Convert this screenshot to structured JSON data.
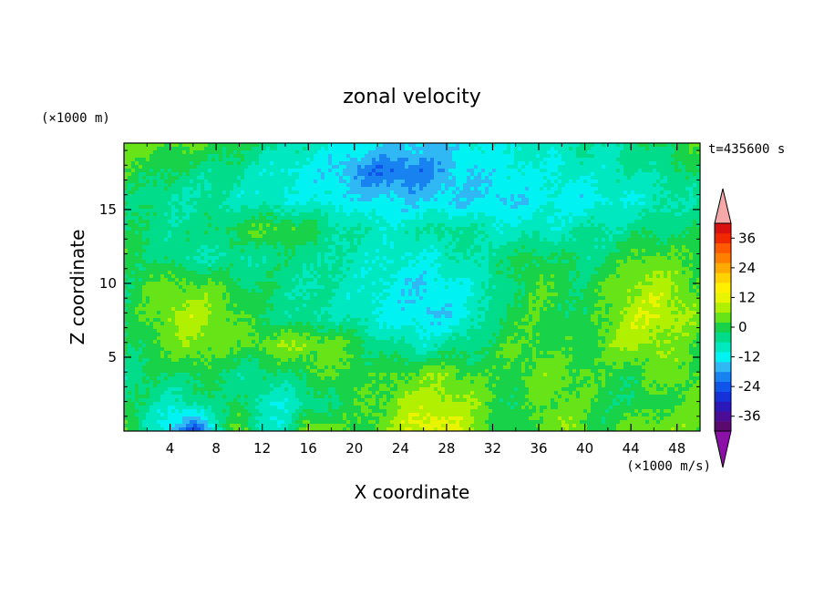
{
  "chart_data": {
    "type": "heatmap",
    "title": "zonal velocity",
    "xlabel": "X coordinate",
    "ylabel": "Z coordinate",
    "x_unit": "(×1000 m/s)",
    "y_unit": "(×1000 m)",
    "time_label": "t=435600 s",
    "xlim": [
      0,
      50
    ],
    "ylim": [
      0,
      19.5
    ],
    "x_ticks": [
      4,
      8,
      12,
      16,
      20,
      24,
      28,
      32,
      36,
      40,
      44,
      48
    ],
    "y_ticks": [
      5,
      10,
      15
    ],
    "colorbar": {
      "min": -42,
      "max": 42,
      "step": 4,
      "tick_values": [
        36,
        24,
        12,
        0,
        -12,
        -24,
        -36
      ],
      "colors": [
        "#5a0a6e",
        "#4b0c96",
        "#2b18b8",
        "#1432d8",
        "#0f55ea",
        "#1882f0",
        "#30b8f4",
        "#00f2f2",
        "#00e8c0",
        "#00dc8a",
        "#18d24a",
        "#66e418",
        "#b0f000",
        "#e8f400",
        "#fff000",
        "#ffd200",
        "#ffaa00",
        "#ff8000",
        "#ff5a00",
        "#f02800",
        "#d81010"
      ],
      "under_color": "#8a10a8",
      "over_color": "#f4a8a8"
    },
    "z_grid": {
      "description": "u(x,z) in m/s, 11 rows from top (z≈19.5) to bottom (z=0), 26 columns from x=0 to x=50",
      "rows": [
        [
          4,
          4,
          2,
          2,
          2,
          0,
          -4,
          -6,
          -8,
          -10,
          -12,
          -12,
          -14,
          -14,
          -14,
          -12,
          -10,
          -10,
          -8,
          -8,
          -6,
          -6,
          -4,
          -2,
          0,
          2
        ],
        [
          2,
          0,
          -2,
          -4,
          -4,
          -6,
          -8,
          -10,
          -12,
          -14,
          -18,
          -22,
          -22,
          -20,
          -16,
          -14,
          -12,
          -12,
          -10,
          -10,
          -8,
          -8,
          -6,
          -6,
          -4,
          -2
        ],
        [
          -2,
          -4,
          -6,
          -6,
          -6,
          -8,
          -8,
          -10,
          -10,
          -12,
          -12,
          -14,
          -14,
          -14,
          -14,
          -14,
          -14,
          -14,
          -12,
          -12,
          -12,
          -10,
          -10,
          -8,
          -6,
          -6
        ],
        [
          -2,
          -2,
          -4,
          -4,
          -2,
          0,
          2,
          2,
          0,
          -4,
          -6,
          -8,
          -8,
          -6,
          -4,
          -6,
          -8,
          -8,
          -8,
          -8,
          -6,
          -6,
          -4,
          -4,
          -2,
          -2
        ],
        [
          0,
          -2,
          -4,
          -6,
          -6,
          -6,
          -4,
          -4,
          -4,
          -6,
          -8,
          -8,
          -10,
          -10,
          -8,
          -6,
          -4,
          -2,
          0,
          -2,
          -4,
          -2,
          2,
          4,
          2,
          0
        ],
        [
          -2,
          2,
          4,
          4,
          2,
          0,
          -2,
          -4,
          -6,
          -6,
          -8,
          -10,
          -12,
          -14,
          -12,
          -10,
          -6,
          -2,
          2,
          0,
          -2,
          2,
          6,
          8,
          6,
          2
        ],
        [
          -2,
          2,
          6,
          8,
          6,
          2,
          -2,
          -4,
          -6,
          -6,
          -8,
          -10,
          -12,
          -14,
          -14,
          -10,
          -4,
          0,
          2,
          0,
          -2,
          4,
          8,
          10,
          8,
          4
        ],
        [
          -2,
          0,
          4,
          6,
          4,
          2,
          4,
          6,
          6,
          4,
          0,
          -4,
          -6,
          -8,
          -6,
          -4,
          0,
          2,
          2,
          0,
          0,
          4,
          8,
          6,
          4,
          0
        ],
        [
          -4,
          -2,
          -2,
          0,
          -2,
          -4,
          -4,
          -2,
          0,
          2,
          2,
          0,
          2,
          4,
          4,
          2,
          0,
          2,
          4,
          4,
          2,
          0,
          0,
          2,
          4,
          2
        ],
        [
          -2,
          -4,
          -8,
          -6,
          -2,
          -2,
          -8,
          -10,
          -6,
          -2,
          0,
          2,
          6,
          8,
          8,
          6,
          2,
          -2,
          2,
          4,
          2,
          0,
          -2,
          0,
          2,
          4
        ],
        [
          4,
          -6,
          -14,
          -26,
          -8,
          4,
          -6,
          -10,
          8,
          4,
          0,
          4,
          8,
          12,
          12,
          8,
          2,
          -2,
          4,
          6,
          2,
          0,
          4,
          6,
          4,
          4
        ]
      ]
    }
  }
}
